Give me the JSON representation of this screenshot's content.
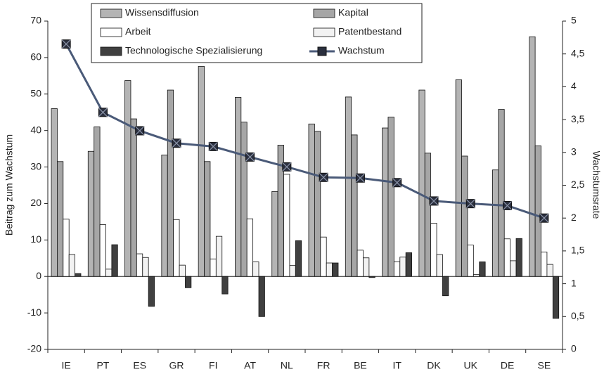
{
  "chart_data": {
    "type": "bar",
    "categories": [
      "IE",
      "PT",
      "ES",
      "GR",
      "FI",
      "AT",
      "NL",
      "FR",
      "BE",
      "IT",
      "DK",
      "UK",
      "DE",
      "SE"
    ],
    "series": [
      {
        "name": "Wissensdiffusion",
        "color": "#b4b4b4",
        "values": [
          46,
          34.3,
          53.7,
          33.3,
          57.6,
          49.1,
          23.3,
          41.8,
          49.2,
          40.7,
          51.1,
          53.9,
          29.2,
          65.7
        ]
      },
      {
        "name": "Kapital",
        "color": "#a6a6a6",
        "values": [
          31.5,
          41,
          43.2,
          51.1,
          31.5,
          42.3,
          36,
          39.8,
          38.8,
          43.7,
          33.8,
          33,
          45.8,
          35.8
        ]
      },
      {
        "name": "Arbeit",
        "color": "#ffffff",
        "values": [
          15.7,
          14.2,
          6.2,
          15.6,
          4.8,
          15.8,
          28,
          10.8,
          7.2,
          4,
          14.6,
          8.6,
          10.3,
          6.7
        ]
      },
      {
        "name": "Patentbestand",
        "color": "#f2f2f2",
        "values": [
          6,
          2,
          5.2,
          3.1,
          11,
          4,
          3,
          3.7,
          5.1,
          5.3,
          6,
          0.5,
          4.3,
          3.3
        ]
      },
      {
        "name": "Technologische Spezialisierung",
        "color": "#404040",
        "values": [
          0.8,
          8.7,
          -8.2,
          -3.1,
          -4.8,
          -11,
          9.8,
          3.7,
          -0.3,
          6.5,
          -5.3,
          4,
          10.4,
          -11.5
        ]
      },
      {
        "name": "Wachstum",
        "type": "line",
        "axis": "y2",
        "color": "#4a5a78",
        "values": [
          4.65,
          3.61,
          3.33,
          3.14,
          3.09,
          2.93,
          2.78,
          2.62,
          2.61,
          2.54,
          2.26,
          2.22,
          2.19,
          2.0
        ]
      }
    ],
    "ylabel": "Beitrag zum Wachstum",
    "y2label": "Wachstumsrate",
    "ylim": [
      -20,
      70
    ],
    "yticks": [
      -20,
      -10,
      0,
      10,
      20,
      30,
      40,
      50,
      60,
      70
    ],
    "y2lim": [
      0,
      5
    ],
    "y2ticks": [
      0,
      {
        "value": 0.5,
        "label": "0,5"
      },
      1,
      {
        "value": 1.5,
        "label": "1,5"
      },
      2,
      {
        "value": 2.5,
        "label": "2,5"
      },
      3,
      {
        "value": 3.5,
        "label": "3,5"
      },
      4,
      {
        "value": 4.5,
        "label": "4,5"
      },
      5
    ],
    "legend": "top"
  }
}
